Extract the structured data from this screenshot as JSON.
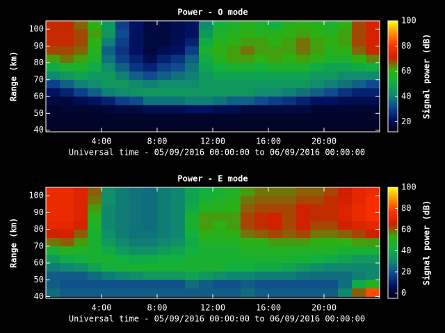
{
  "chart_data": [
    {
      "type": "heatmap",
      "title": "Power - O mode",
      "x_label": "Universal time - 05/09/2016 00:00:00 to 06/09/2016 00:00:00",
      "y_label": "Range (km)",
      "colorbar_label": "Signal power (dB)",
      "xlim": [
        0,
        24
      ],
      "xticks": [
        {
          "value": 4,
          "label": "4:00"
        },
        {
          "value": 8,
          "label": "8:00"
        },
        {
          "value": 12,
          "label": "12:00"
        },
        {
          "value": 16,
          "label": "16:00"
        },
        {
          "value": 20,
          "label": "20:00"
        }
      ],
      "ylim": [
        39,
        105
      ],
      "yticks": [
        40,
        50,
        60,
        70,
        80,
        90,
        100
      ],
      "zlim": [
        12,
        100
      ],
      "zticks": [
        20,
        40,
        60,
        80,
        100
      ],
      "colormap": [
        "#000010",
        "#001060",
        "#104890",
        "#108870",
        "#10b040",
        "#30b010",
        "#d02000",
        "#ff3000",
        "#ff9000",
        "#ffff00"
      ],
      "x_bins": [
        0,
        1,
        2,
        3,
        4,
        5,
        6,
        7,
        8,
        9,
        10,
        11,
        12,
        13,
        14,
        15,
        16,
        17,
        18,
        19,
        20,
        21,
        22,
        23,
        24
      ],
      "y_bins": [
        40,
        45,
        50,
        55,
        60,
        65,
        70,
        75,
        80,
        85,
        90,
        95,
        100,
        105
      ],
      "values": [
        [
          15,
          15,
          15,
          18,
          22,
          30,
          42,
          50,
          62,
          68,
          70,
          70,
          70
        ],
        [
          15,
          15,
          16,
          18,
          25,
          35,
          45,
          55,
          65,
          68,
          70,
          70,
          70
        ],
        [
          15,
          15,
          16,
          20,
          30,
          40,
          48,
          55,
          62,
          66,
          68,
          68,
          66
        ],
        [
          15,
          15,
          16,
          22,
          35,
          42,
          45,
          50,
          55,
          58,
          60,
          62,
          60
        ],
        [
          15,
          15,
          17,
          25,
          40,
          45,
          45,
          42,
          38,
          35,
          40,
          45,
          45
        ],
        [
          15,
          15,
          18,
          30,
          42,
          45,
          40,
          35,
          30,
          28,
          30,
          32,
          30
        ],
        [
          15,
          15,
          18,
          32,
          44,
          42,
          35,
          28,
          25,
          22,
          22,
          22,
          22
        ],
        [
          15,
          15,
          20,
          38,
          45,
          40,
          32,
          25,
          20,
          18,
          18,
          18,
          18
        ],
        [
          15,
          15,
          20,
          38,
          45,
          42,
          35,
          30,
          25,
          20,
          18,
          18,
          18
        ],
        [
          15,
          15,
          20,
          38,
          45,
          42,
          38,
          32,
          28,
          22,
          20,
          20,
          20
        ],
        [
          15,
          15,
          22,
          40,
          45,
          42,
          40,
          38,
          35,
          30,
          25,
          22,
          22
        ],
        [
          15,
          15,
          22,
          40,
          45,
          45,
          45,
          48,
          50,
          55,
          50,
          45,
          42
        ],
        [
          15,
          15,
          20,
          38,
          45,
          45,
          48,
          52,
          58,
          60,
          58,
          55,
          52
        ],
        [
          15,
          15,
          20,
          35,
          45,
          45,
          48,
          55,
          62,
          62,
          60,
          58,
          55
        ],
        [
          15,
          15,
          18,
          35,
          45,
          45,
          48,
          55,
          62,
          65,
          62,
          60,
          58
        ],
        [
          15,
          15,
          18,
          32,
          42,
          45,
          48,
          52,
          60,
          62,
          62,
          58,
          55
        ],
        [
          15,
          15,
          18,
          30,
          42,
          45,
          48,
          55,
          62,
          62,
          60,
          58,
          52
        ],
        [
          15,
          15,
          18,
          28,
          40,
          45,
          48,
          55,
          60,
          62,
          62,
          60,
          58
        ],
        [
          15,
          15,
          18,
          25,
          38,
          45,
          48,
          55,
          62,
          65,
          65,
          62,
          60
        ],
        [
          15,
          15,
          16,
          22,
          35,
          42,
          45,
          50,
          60,
          62,
          62,
          60,
          58
        ],
        [
          15,
          15,
          16,
          22,
          32,
          40,
          45,
          48,
          55,
          58,
          60,
          58,
          55
        ],
        [
          15,
          15,
          16,
          20,
          28,
          38,
          42,
          48,
          55,
          60,
          62,
          62,
          60
        ],
        [
          15,
          15,
          16,
          20,
          25,
          35,
          42,
          50,
          60,
          66,
          68,
          68,
          68
        ],
        [
          15,
          15,
          16,
          20,
          25,
          32,
          42,
          52,
          64,
          70,
          72,
          72,
          72
        ]
      ]
    },
    {
      "type": "heatmap",
      "title": "Power - E mode",
      "x_label": "Universal time - 05/09/2016 00:00:00 to 06/09/2016 00:00:00",
      "y_label": "Range (km)",
      "colorbar_label": "Signal power (dB)",
      "xlim": [
        0,
        24
      ],
      "xticks": [
        {
          "value": 4,
          "label": "4:00"
        },
        {
          "value": 8,
          "label": "8:00"
        },
        {
          "value": 12,
          "label": "12:00"
        },
        {
          "value": 16,
          "label": "16:00"
        },
        {
          "value": 20,
          "label": "20:00"
        }
      ],
      "ylim": [
        39,
        105
      ],
      "yticks": [
        40,
        50,
        60,
        70,
        80,
        90,
        100
      ],
      "zlim": [
        -5,
        100
      ],
      "zticks": [
        0,
        20,
        40,
        60,
        80,
        100
      ],
      "colormap": [
        "#000010",
        "#001060",
        "#104890",
        "#108870",
        "#10b040",
        "#30b010",
        "#d02000",
        "#ff3000",
        "#ff9000",
        "#ffff00"
      ],
      "x_bins": [
        0,
        1,
        2,
        3,
        4,
        5,
        6,
        7,
        8,
        9,
        10,
        11,
        12,
        13,
        14,
        15,
        16,
        17,
        18,
        19,
        20,
        21,
        22,
        23,
        24
      ],
      "y_bins": [
        40,
        45,
        50,
        55,
        60,
        65,
        70,
        75,
        80,
        85,
        90,
        95,
        100,
        105
      ],
      "values": [
        [
          25,
          22,
          22,
          28,
          35,
          45,
          58,
          65,
          70,
          72,
          72,
          72,
          72
        ],
        [
          22,
          20,
          22,
          30,
          40,
          50,
          60,
          66,
          70,
          72,
          72,
          72,
          72
        ],
        [
          22,
          20,
          22,
          32,
          42,
          48,
          55,
          60,
          66,
          68,
          68,
          68,
          68
        ],
        [
          22,
          20,
          25,
          38,
          45,
          45,
          45,
          45,
          48,
          50,
          55,
          58,
          60
        ],
        [
          22,
          20,
          28,
          42,
          45,
          40,
          35,
          32,
          30,
          30,
          30,
          32,
          32
        ],
        [
          22,
          20,
          30,
          44,
          42,
          35,
          30,
          28,
          28,
          28,
          28,
          28,
          28
        ],
        [
          22,
          20,
          32,
          45,
          40,
          32,
          28,
          26,
          26,
          26,
          26,
          26,
          26
        ],
        [
          22,
          20,
          35,
          45,
          40,
          32,
          28,
          26,
          25,
          25,
          25,
          25,
          25
        ],
        [
          22,
          20,
          35,
          45,
          42,
          35,
          30,
          28,
          28,
          28,
          28,
          28,
          28
        ],
        [
          22,
          20,
          35,
          45,
          42,
          38,
          32,
          30,
          30,
          30,
          30,
          30,
          30
        ],
        [
          22,
          25,
          38,
          45,
          45,
          42,
          40,
          42,
          45,
          45,
          40,
          38,
          38
        ],
        [
          22,
          22,
          35,
          45,
          45,
          45,
          48,
          52,
          55,
          55,
          50,
          45,
          42
        ],
        [
          22,
          20,
          32,
          45,
          45,
          45,
          48,
          50,
          52,
          55,
          50,
          48,
          45
        ],
        [
          22,
          20,
          30,
          42,
          45,
          45,
          48,
          52,
          55,
          55,
          52,
          50,
          48
        ],
        [
          25,
          22,
          30,
          42,
          45,
          48,
          52,
          58,
          62,
          62,
          60,
          58,
          55
        ],
        [
          22,
          20,
          28,
          40,
          45,
          48,
          52,
          60,
          64,
          64,
          62,
          60,
          58
        ],
        [
          22,
          20,
          28,
          40,
          45,
          48,
          55,
          62,
          65,
          65,
          62,
          60,
          58
        ],
        [
          22,
          20,
          28,
          38,
          45,
          48,
          55,
          60,
          62,
          62,
          62,
          60,
          58
        ],
        [
          22,
          20,
          26,
          35,
          44,
          48,
          55,
          62,
          65,
          65,
          65,
          62,
          60
        ],
        [
          22,
          20,
          25,
          32,
          42,
          48,
          52,
          58,
          62,
          64,
          64,
          62,
          60
        ],
        [
          22,
          20,
          25,
          30,
          40,
          48,
          52,
          58,
          62,
          64,
          64,
          64,
          62
        ],
        [
          30,
          25,
          25,
          30,
          38,
          45,
          52,
          60,
          65,
          68,
          68,
          66,
          65
        ],
        [
          60,
          40,
          28,
          30,
          35,
          45,
          55,
          62,
          68,
          72,
          72,
          70,
          70
        ],
        [
          80,
          50,
          30,
          30,
          35,
          45,
          55,
          65,
          70,
          75,
          75,
          75,
          72
        ]
      ]
    }
  ]
}
